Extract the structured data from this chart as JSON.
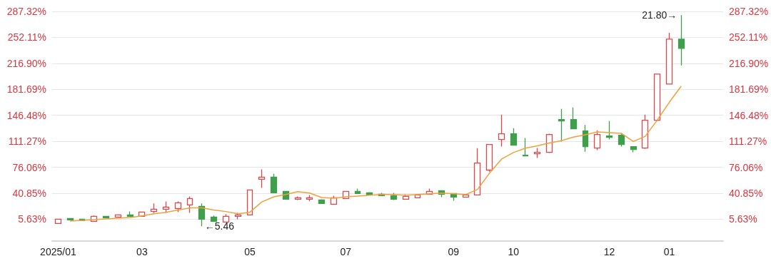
{
  "chart_data": {
    "type": "candlestick",
    "categories": [
      "2025/01",
      null,
      null,
      null,
      null,
      null,
      null,
      "03",
      null,
      null,
      null,
      null,
      null,
      null,
      null,
      null,
      "05",
      null,
      null,
      null,
      null,
      null,
      null,
      null,
      "07",
      null,
      null,
      null,
      null,
      null,
      null,
      null,
      null,
      "09",
      null,
      null,
      null,
      null,
      "10",
      null,
      null,
      null,
      null,
      null,
      null,
      null,
      "12",
      null,
      null,
      null,
      null,
      "01",
      null,
      null,
      null,
      null
    ],
    "ohlc": [
      [
        -0.2,
        5.6,
        -0.2,
        5.6
      ],
      [
        6.6,
        7,
        4.5,
        4.7
      ],
      [
        5.6,
        5.8,
        3.7,
        3.7
      ],
      [
        2.7,
        10.5,
        2.7,
        9.5
      ],
      [
        9.5,
        9.8,
        7.6,
        7.6
      ],
      [
        8.5,
        12,
        8.5,
        11.4
      ],
      [
        11.4,
        16.2,
        9,
        9.5
      ],
      [
        9.5,
        16,
        9.5,
        15.3
      ],
      [
        16.2,
        26.9,
        14,
        19.1
      ],
      [
        19.1,
        29.7,
        14.3,
        22
      ],
      [
        20.1,
        29.7,
        15.3,
        27.8
      ],
      [
        24.9,
        36.5,
        14.3,
        33.6
      ],
      [
        23,
        26.9,
        -4,
        5.6
      ],
      [
        8.5,
        10.5,
        2.7,
        2.7
      ],
      [
        1.8,
        12.4,
        1.8,
        9.5
      ],
      [
        9.5,
        14.3,
        5.6,
        11.4
      ],
      [
        11.4,
        45.2,
        10.5,
        45.2
      ],
      [
        59.7,
        73.2,
        48.1,
        62.7
      ],
      [
        62.7,
        67.2,
        41.3,
        41.3
      ],
      [
        43.3,
        44,
        32,
        32.6
      ],
      [
        32.6,
        36.5,
        31.7,
        34.6
      ],
      [
        32.6,
        38.4,
        29.8,
        34.6
      ],
      [
        31.7,
        32.6,
        26.9,
        26.9
      ],
      [
        25.9,
        37.5,
        25.9,
        34.6
      ],
      [
        33.6,
        43.3,
        33,
        43.3
      ],
      [
        43.3,
        47.1,
        39.5,
        40.4
      ],
      [
        41.3,
        42.3,
        38.4,
        38.4
      ],
      [
        39.4,
        41.3,
        37,
        37.5
      ],
      [
        37.5,
        41.3,
        31.7,
        32.6
      ],
      [
        32.6,
        39.4,
        32.6,
        36.5
      ],
      [
        34.6,
        39.4,
        34,
        38.4
      ],
      [
        39.4,
        47.1,
        39,
        43.3
      ],
      [
        44.2,
        45,
        35.5,
        39.4
      ],
      [
        40.4,
        41,
        30.7,
        35.5
      ],
      [
        35.5,
        39.4,
        35,
        38.4
      ],
      [
        38.4,
        102,
        38.4,
        81.8
      ],
      [
        72.2,
        106.9,
        70,
        106.9
      ],
      [
        113.7,
        147.4,
        104,
        121.4
      ],
      [
        121.4,
        129.1,
        106,
        106
      ],
      [
        92.4,
        115.6,
        91.5,
        91.5
      ],
      [
        94.4,
        102.1,
        88.6,
        96.3
      ],
      [
        96.3,
        121.4,
        95.3,
        120.4
      ],
      [
        140.7,
        155.2,
        110.8,
        138.7
      ],
      [
        140.7,
        157.1,
        128.1,
        128.1
      ],
      [
        125.2,
        133.3,
        97.2,
        104
      ],
      [
        102.1,
        126.2,
        99.2,
        120.4
      ],
      [
        118.5,
        138.7,
        113.7,
        116.6
      ],
      [
        119.5,
        122.3,
        104,
        106.9
      ],
      [
        104,
        104,
        96.3,
        100.2
      ],
      [
        102.1,
        147.4,
        101,
        139.7
      ],
      [
        139.7,
        202.4,
        138.7,
        202.4
      ],
      [
        188.9,
        258.4,
        188.9,
        249.7
      ],
      [
        249.7,
        282.3,
        214.1,
        237.2
      ],
      null,
      null,
      null
    ],
    "colors": [
      "#e0464b",
      "#3f9f4c",
      "#3f9f4c",
      "#e0464b",
      "#3f9f4c",
      "#e0464b",
      "#3f9f4c",
      "#e0464b",
      "#e0464b",
      "#e0464b",
      "#e0464b",
      "#e0464b",
      "#3f9f4c",
      "#3f9f4c",
      "#e0464b",
      "#e0464b",
      "#e0464b",
      "#e0464b",
      "#3f9f4c",
      "#3f9f4c",
      "#e0464b",
      "#e0464b",
      "#3f9f4c",
      "#e0464b",
      "#e0464b",
      "#3f9f4c",
      "#3f9f4c",
      "#3f9f4c",
      "#3f9f4c",
      "#e0464b",
      "#e0464b",
      "#e0464b",
      "#3f9f4c",
      "#3f9f4c",
      "#e0464b",
      "#e0464b",
      "#e0464b",
      "#e0464b",
      "#3f9f4c",
      "#3f9f4c",
      "#e0464b",
      "#e0464b",
      "#3f9f4c",
      "#3f9f4c",
      "#3f9f4c",
      "#e0464b",
      "#3f9f4c",
      "#3f9f4c",
      "#3f9f4c",
      "#e0464b",
      "#e0464b",
      "#e0464b",
      "#3f9f4c",
      null,
      null,
      null
    ],
    "series": [
      {
        "type": "line",
        "color": "#f0a03c",
        "values": [
          null,
          3,
          4,
          5,
          6,
          7,
          8,
          10,
          13,
          15,
          18,
          21,
          21,
          18,
          16,
          13,
          15,
          29,
          36,
          39,
          43,
          41,
          35,
          34,
          36,
          37,
          38,
          39,
          39,
          38,
          39,
          40,
          41,
          40,
          39,
          46,
          68,
          87,
          96,
          102,
          105,
          109,
          112,
          117,
          120,
          124,
          123,
          122,
          111,
          118,
          140,
          164,
          186,
          null,
          null,
          null
        ]
      }
    ],
    "ylim": [
      -24,
      287.32
    ],
    "yticks": [
      {
        "value": 5.63,
        "label": "5.63%"
      },
      {
        "value": 40.85,
        "label": "40.85%"
      },
      {
        "value": 76.06,
        "label": "76.06%"
      },
      {
        "value": 111.27,
        "label": "111.27%"
      },
      {
        "value": 146.48,
        "label": "146.48%"
      },
      {
        "value": 181.69,
        "label": "181.69%"
      },
      {
        "value": 216.9,
        "label": "216.90%"
      },
      {
        "value": 252.11,
        "label": "252.11%"
      },
      {
        "value": 287.32,
        "label": "287.32%"
      }
    ],
    "y2lim": [
      -24,
      287.32
    ],
    "y2ticks": [
      {
        "value": 5.63,
        "label": "5.63%"
      },
      {
        "value": 40.85,
        "label": "40.85%"
      },
      {
        "value": 76.06,
        "label": "76.06%"
      },
      {
        "value": 111.27,
        "label": "111.27%"
      },
      {
        "value": 146.48,
        "label": "146.48%"
      },
      {
        "value": 181.69,
        "label": "181.69%"
      },
      {
        "value": 216.9,
        "label": "216.90%"
      },
      {
        "value": 252.11,
        "label": "252.11%"
      },
      {
        "value": 287.32,
        "label": "287.32%"
      }
    ],
    "grid": "y",
    "annotations": [
      "21.80→",
      "←5.46"
    ]
  }
}
